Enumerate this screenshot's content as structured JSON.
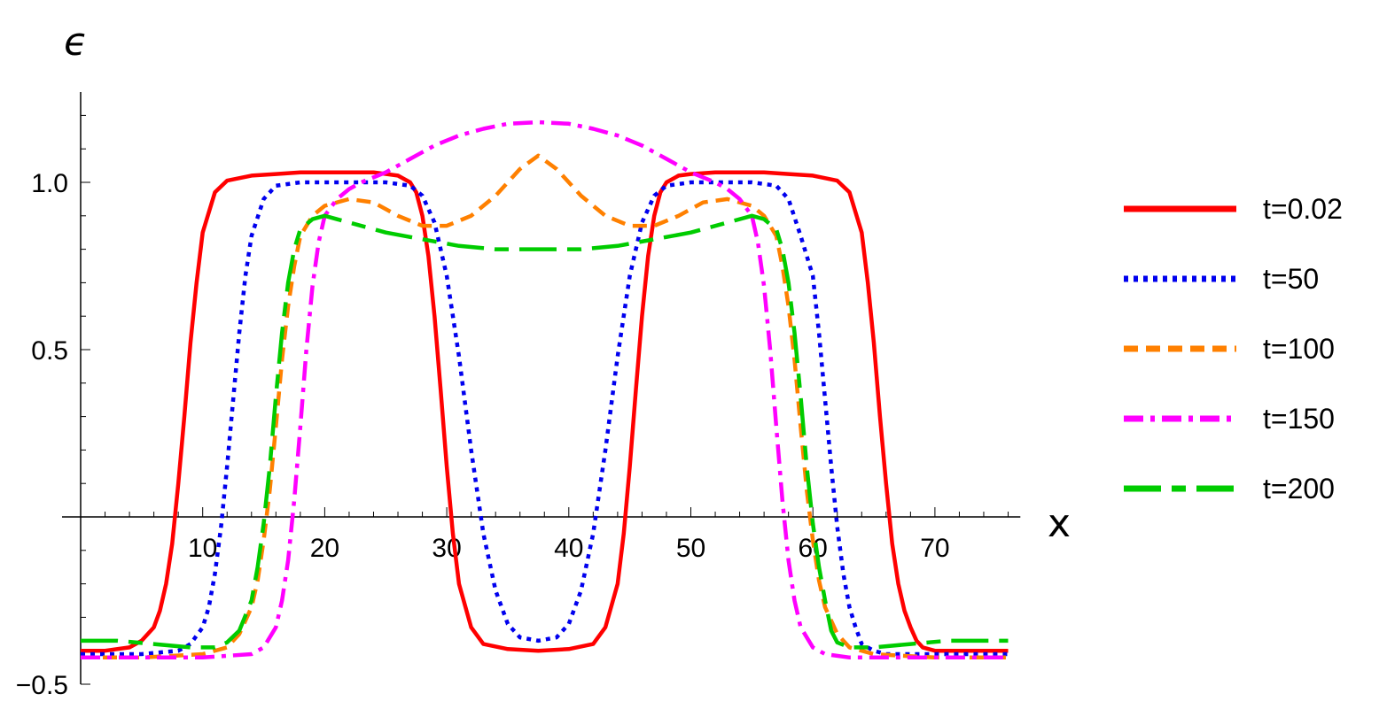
{
  "chart_data": {
    "type": "line",
    "xlabel": "x",
    "ylabel": "ϵ",
    "xlim": [
      0,
      77
    ],
    "ylim": [
      -0.5,
      1.27
    ],
    "xticks": [
      10,
      20,
      30,
      40,
      50,
      60,
      70
    ],
    "yticks": [
      -0.5,
      0.5,
      1.0
    ],
    "ytick_labels": [
      "−0.5",
      "0.5",
      "1.0"
    ],
    "grid": false,
    "legend_position": "right",
    "series": [
      {
        "name": "t=0.02",
        "color": "#ff0000",
        "dash": "solid",
        "x": [
          0,
          2,
          4,
          5,
          6,
          6.5,
          7,
          7.5,
          8,
          8.5,
          9,
          9.5,
          10,
          11,
          12,
          14,
          16,
          18,
          20,
          22,
          24,
          26,
          27,
          27.5,
          28,
          28.5,
          29,
          29.5,
          30,
          30.5,
          31,
          32,
          33,
          35,
          37.5,
          40,
          42,
          43,
          44,
          44.5,
          45,
          45.5,
          46,
          46.5,
          47,
          47.5,
          48,
          49,
          50,
          52,
          54,
          56,
          58,
          60,
          62,
          63,
          64,
          64.5,
          65,
          65.5,
          66,
          66.5,
          67,
          67.5,
          68,
          68.5,
          69,
          70,
          71,
          73,
          75,
          76
        ],
        "y": [
          -0.4,
          -0.4,
          -0.39,
          -0.37,
          -0.33,
          -0.28,
          -0.2,
          -0.08,
          0.1,
          0.3,
          0.52,
          0.7,
          0.85,
          0.97,
          1.005,
          1.02,
          1.025,
          1.03,
          1.03,
          1.03,
          1.03,
          1.02,
          1.0,
          0.97,
          0.9,
          0.78,
          0.6,
          0.38,
          0.15,
          -0.05,
          -0.2,
          -0.33,
          -0.38,
          -0.395,
          -0.4,
          -0.395,
          -0.38,
          -0.33,
          -0.2,
          -0.05,
          0.15,
          0.38,
          0.6,
          0.78,
          0.9,
          0.97,
          1.0,
          1.02,
          1.025,
          1.03,
          1.03,
          1.03,
          1.025,
          1.02,
          1.005,
          0.97,
          0.85,
          0.7,
          0.52,
          0.3,
          0.1,
          -0.08,
          -0.2,
          -0.28,
          -0.33,
          -0.37,
          -0.39,
          -0.4,
          -0.4,
          -0.4,
          -0.4,
          -0.4
        ]
      },
      {
        "name": "t=50",
        "color": "#0000ee",
        "dash": "dotted",
        "x": [
          0,
          2,
          5,
          8,
          9,
          10,
          10.5,
          11,
          11.5,
          12,
          12.5,
          13,
          13.5,
          14,
          15,
          16,
          18,
          20,
          25,
          27,
          28,
          29,
          30,
          31,
          32,
          33,
          34,
          35,
          36,
          37.5,
          39,
          40,
          41,
          42,
          43,
          44,
          45,
          46,
          47,
          48,
          50,
          55,
          57,
          58,
          59,
          60,
          60.5,
          61,
          61.5,
          62,
          62.5,
          63,
          63.5,
          64,
          65,
          66,
          67,
          70,
          73,
          76
        ],
        "y": [
          -0.41,
          -0.41,
          -0.41,
          -0.4,
          -0.38,
          -0.33,
          -0.27,
          -0.17,
          -0.03,
          0.15,
          0.35,
          0.55,
          0.72,
          0.84,
          0.95,
          0.99,
          1.0,
          1.0,
          1.0,
          0.99,
          0.96,
          0.88,
          0.72,
          0.48,
          0.2,
          -0.05,
          -0.22,
          -0.32,
          -0.36,
          -0.37,
          -0.36,
          -0.32,
          -0.22,
          -0.05,
          0.2,
          0.48,
          0.72,
          0.88,
          0.96,
          0.99,
          1.0,
          1.0,
          0.99,
          0.95,
          0.84,
          0.72,
          0.55,
          0.35,
          0.15,
          -0.03,
          -0.17,
          -0.27,
          -0.33,
          -0.38,
          -0.4,
          -0.41,
          -0.41,
          -0.41,
          -0.41,
          -0.41
        ]
      },
      {
        "name": "t=100",
        "color": "#ff8000",
        "dash": "dashed",
        "x": [
          0,
          5,
          10,
          12,
          13,
          14,
          14.5,
          15,
          15.5,
          16,
          16.5,
          17,
          17.5,
          18,
          19,
          20,
          22,
          24,
          26,
          28,
          30,
          32,
          34,
          36,
          37.5,
          39,
          41,
          43,
          45,
          47,
          49,
          51,
          53,
          55,
          56,
          57,
          57.5,
          58,
          58.5,
          59,
          59.5,
          60,
          60.5,
          61,
          62,
          63,
          65,
          70,
          76
        ],
        "y": [
          -0.42,
          -0.42,
          -0.41,
          -0.39,
          -0.35,
          -0.27,
          -0.19,
          -0.07,
          0.08,
          0.27,
          0.47,
          0.63,
          0.75,
          0.84,
          0.9,
          0.93,
          0.95,
          0.94,
          0.9,
          0.87,
          0.87,
          0.9,
          0.96,
          1.04,
          1.08,
          1.04,
          0.96,
          0.9,
          0.87,
          0.87,
          0.9,
          0.94,
          0.95,
          0.93,
          0.9,
          0.84,
          0.75,
          0.63,
          0.47,
          0.27,
          0.08,
          -0.07,
          -0.19,
          -0.27,
          -0.35,
          -0.39,
          -0.41,
          -0.42,
          -0.42
        ]
      },
      {
        "name": "t=150",
        "color": "#ff00ff",
        "dash": "dashdot",
        "x": [
          0,
          5,
          10,
          14,
          15,
          16,
          16.5,
          17,
          17.5,
          18,
          18.5,
          19,
          19.5,
          20,
          21,
          22,
          23,
          25,
          27,
          29,
          31,
          33,
          35,
          37.5,
          40,
          42,
          44,
          46,
          48,
          50,
          52,
          53,
          54,
          55,
          55.5,
          56,
          56.5,
          57,
          57.5,
          58,
          58.5,
          59,
          60,
          61,
          63,
          65,
          70,
          76
        ],
        "y": [
          -0.42,
          -0.42,
          -0.42,
          -0.41,
          -0.39,
          -0.33,
          -0.25,
          -0.13,
          0.05,
          0.27,
          0.5,
          0.69,
          0.82,
          0.9,
          0.95,
          0.98,
          1.0,
          1.03,
          1.07,
          1.11,
          1.14,
          1.16,
          1.175,
          1.18,
          1.175,
          1.16,
          1.14,
          1.11,
          1.07,
          1.03,
          1.0,
          0.98,
          0.95,
          0.9,
          0.82,
          0.69,
          0.5,
          0.27,
          0.05,
          -0.13,
          -0.25,
          -0.33,
          -0.39,
          -0.41,
          -0.42,
          -0.42,
          -0.42,
          -0.42
        ]
      },
      {
        "name": "t=200",
        "color": "#00cc00",
        "dash": "longdash",
        "x": [
          0,
          3,
          6,
          9,
          11,
          12,
          13,
          14,
          14.5,
          15,
          15.5,
          16,
          16.5,
          17,
          17.5,
          18,
          19,
          20,
          22,
          25,
          28,
          31,
          34,
          37.5,
          41,
          44,
          47,
          50,
          53,
          55,
          56,
          57,
          57.5,
          58,
          58.5,
          59,
          59.5,
          60,
          60.5,
          61,
          61.5,
          62,
          63,
          65,
          68,
          71,
          73,
          76
        ],
        "y": [
          -0.37,
          -0.37,
          -0.38,
          -0.39,
          -0.39,
          -0.375,
          -0.34,
          -0.25,
          -0.15,
          -0.02,
          0.15,
          0.36,
          0.55,
          0.7,
          0.8,
          0.86,
          0.89,
          0.9,
          0.88,
          0.85,
          0.83,
          0.81,
          0.8,
          0.8,
          0.8,
          0.81,
          0.83,
          0.85,
          0.88,
          0.9,
          0.89,
          0.86,
          0.8,
          0.7,
          0.55,
          0.36,
          0.15,
          -0.02,
          -0.15,
          -0.25,
          -0.34,
          -0.375,
          -0.39,
          -0.39,
          -0.38,
          -0.37,
          -0.37,
          -0.37
        ]
      }
    ]
  }
}
